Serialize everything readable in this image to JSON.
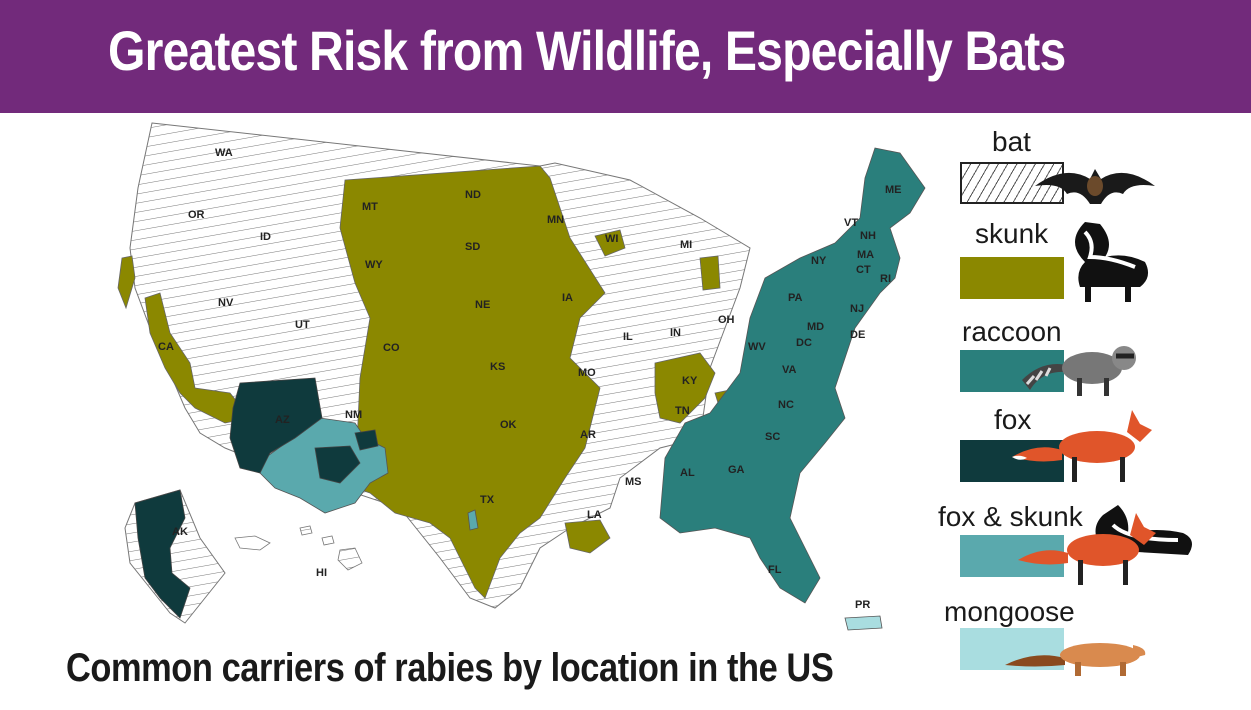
{
  "header": {
    "title": "Greatest Risk from Wildlife, Especially Bats",
    "background_color": "#722a7b"
  },
  "caption": "Common carriers of rabies by location in the US",
  "legend": [
    {
      "label": "bat",
      "color": "#ffffff",
      "pattern": "hatched",
      "icon": "bat-icon"
    },
    {
      "label": "skunk",
      "color": "#8b8800",
      "icon": "skunk-icon"
    },
    {
      "label": "raccoon",
      "color": "#2a7f7c",
      "icon": "raccoon-icon"
    },
    {
      "label": "fox",
      "color": "#0f3a3d",
      "icon": "fox-icon"
    },
    {
      "label": "fox & skunk",
      "color": "#5aa9ad",
      "icon": "fox-and-skunk-icon"
    },
    {
      "label": "mongoose",
      "color": "#a9dde0",
      "icon": "mongoose-icon"
    }
  ],
  "states": [
    {
      "abbr": "WA",
      "carrier": "bat"
    },
    {
      "abbr": "OR",
      "carrier": "bat"
    },
    {
      "abbr": "ID",
      "carrier": "bat"
    },
    {
      "abbr": "CA",
      "carrier": "skunk"
    },
    {
      "abbr": "NV",
      "carrier": "bat"
    },
    {
      "abbr": "UT",
      "carrier": "bat"
    },
    {
      "abbr": "AZ",
      "carrier": "fox"
    },
    {
      "abbr": "MT",
      "carrier": "skunk"
    },
    {
      "abbr": "WY",
      "carrier": "skunk"
    },
    {
      "abbr": "CO",
      "carrier": "skunk"
    },
    {
      "abbr": "NM",
      "carrier": "fox & skunk"
    },
    {
      "abbr": "ND",
      "carrier": "skunk"
    },
    {
      "abbr": "SD",
      "carrier": "skunk"
    },
    {
      "abbr": "NE",
      "carrier": "skunk"
    },
    {
      "abbr": "KS",
      "carrier": "skunk"
    },
    {
      "abbr": "OK",
      "carrier": "skunk"
    },
    {
      "abbr": "TX",
      "carrier": "skunk"
    },
    {
      "abbr": "MN",
      "carrier": "skunk"
    },
    {
      "abbr": "IA",
      "carrier": "skunk"
    },
    {
      "abbr": "MO",
      "carrier": "skunk"
    },
    {
      "abbr": "AR",
      "carrier": "skunk"
    },
    {
      "abbr": "LA",
      "carrier": "skunk"
    },
    {
      "abbr": "WI",
      "carrier": "skunk"
    },
    {
      "abbr": "IL",
      "carrier": "bat"
    },
    {
      "abbr": "MI",
      "carrier": "bat"
    },
    {
      "abbr": "IN",
      "carrier": "bat"
    },
    {
      "abbr": "OH",
      "carrier": "bat"
    },
    {
      "abbr": "KY",
      "carrier": "skunk"
    },
    {
      "abbr": "TN",
      "carrier": "skunk"
    },
    {
      "abbr": "MS",
      "carrier": "bat"
    },
    {
      "abbr": "AL",
      "carrier": "raccoon"
    },
    {
      "abbr": "GA",
      "carrier": "raccoon"
    },
    {
      "abbr": "FL",
      "carrier": "raccoon"
    },
    {
      "abbr": "SC",
      "carrier": "raccoon"
    },
    {
      "abbr": "NC",
      "carrier": "raccoon"
    },
    {
      "abbr": "VA",
      "carrier": "raccoon"
    },
    {
      "abbr": "WV",
      "carrier": "raccoon"
    },
    {
      "abbr": "MD",
      "carrier": "raccoon"
    },
    {
      "abbr": "DC",
      "carrier": "raccoon"
    },
    {
      "abbr": "DE",
      "carrier": "raccoon"
    },
    {
      "abbr": "PA",
      "carrier": "raccoon"
    },
    {
      "abbr": "NJ",
      "carrier": "raccoon"
    },
    {
      "abbr": "NY",
      "carrier": "raccoon"
    },
    {
      "abbr": "CT",
      "carrier": "raccoon"
    },
    {
      "abbr": "RI",
      "carrier": "raccoon"
    },
    {
      "abbr": "MA",
      "carrier": "raccoon"
    },
    {
      "abbr": "VT",
      "carrier": "raccoon"
    },
    {
      "abbr": "NH",
      "carrier": "raccoon"
    },
    {
      "abbr": "ME",
      "carrier": "raccoon"
    },
    {
      "abbr": "AK",
      "carrier": "fox"
    },
    {
      "abbr": "HI",
      "carrier": "bat"
    },
    {
      "abbr": "PR",
      "carrier": "mongoose"
    }
  ]
}
